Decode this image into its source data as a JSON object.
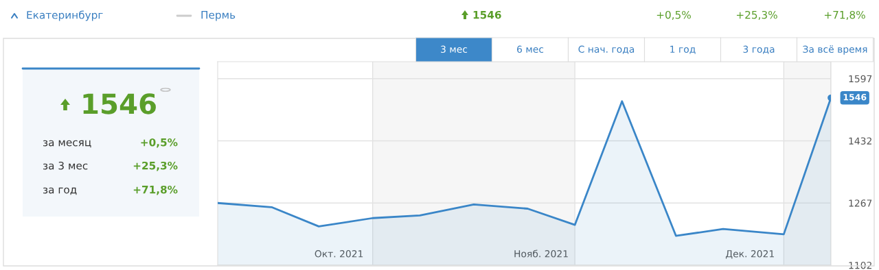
{
  "chart_data": {
    "type": "area",
    "x": [
      "2021-10-09",
      "2021-10-17",
      "2021-10-24",
      "2021-11-01",
      "2021-11-08",
      "2021-11-16",
      "2021-11-24",
      "2021-12-01",
      "2021-12-08",
      "2021-12-16",
      "2021-12-23",
      "2022-01-01",
      "2022-01-08"
    ],
    "series": [
      {
        "color": "#3a86c8",
        "values": [
          1267,
          1256,
          1205,
          1227,
          1234,
          1263,
          1252,
          1209,
          1537,
          1180,
          1198,
          1184,
          1546
        ],
        "value_labels": [
          null,
          null,
          null,
          null,
          null,
          null,
          null,
          null,
          null,
          null,
          null,
          null,
          "1546"
        ]
      }
    ],
    "xlim": [
      "2021-10-09",
      "2022-01-08"
    ],
    "xticks": [
      {
        "value": "2021-10-27",
        "label": "Окт. 2021"
      },
      {
        "value": "2021-11-26",
        "label": "Нояб. 2021"
      },
      {
        "value": "2021-12-27",
        "label": "Дек. 2021"
      }
    ],
    "ylim": [
      1102,
      1642
    ],
    "yticks": [
      1102,
      1267,
      1432,
      1597
    ],
    "grid": "y",
    "bands": [
      {
        "axis": "x",
        "from": "2021-11-01",
        "to": "2021-12-01",
        "color": "#f6f6f6"
      },
      {
        "axis": "x",
        "from": "2022-01-01",
        "to": "2022-01-08",
        "color": "#f6f6f6"
      }
    ],
    "annotations": [
      "Екатеринбург",
      "Пермь",
      "1546",
      "+0,5%",
      "+25,3%",
      "+71,8%",
      "1546",
      "за месяц",
      "+0,5%",
      "за 3 мес",
      "+25,3%",
      "за год",
      "+71,8%",
      "3 мес",
      "6 мес",
      "С нач. года",
      "1 год",
      "3 года",
      "За всё время"
    ]
  }
}
